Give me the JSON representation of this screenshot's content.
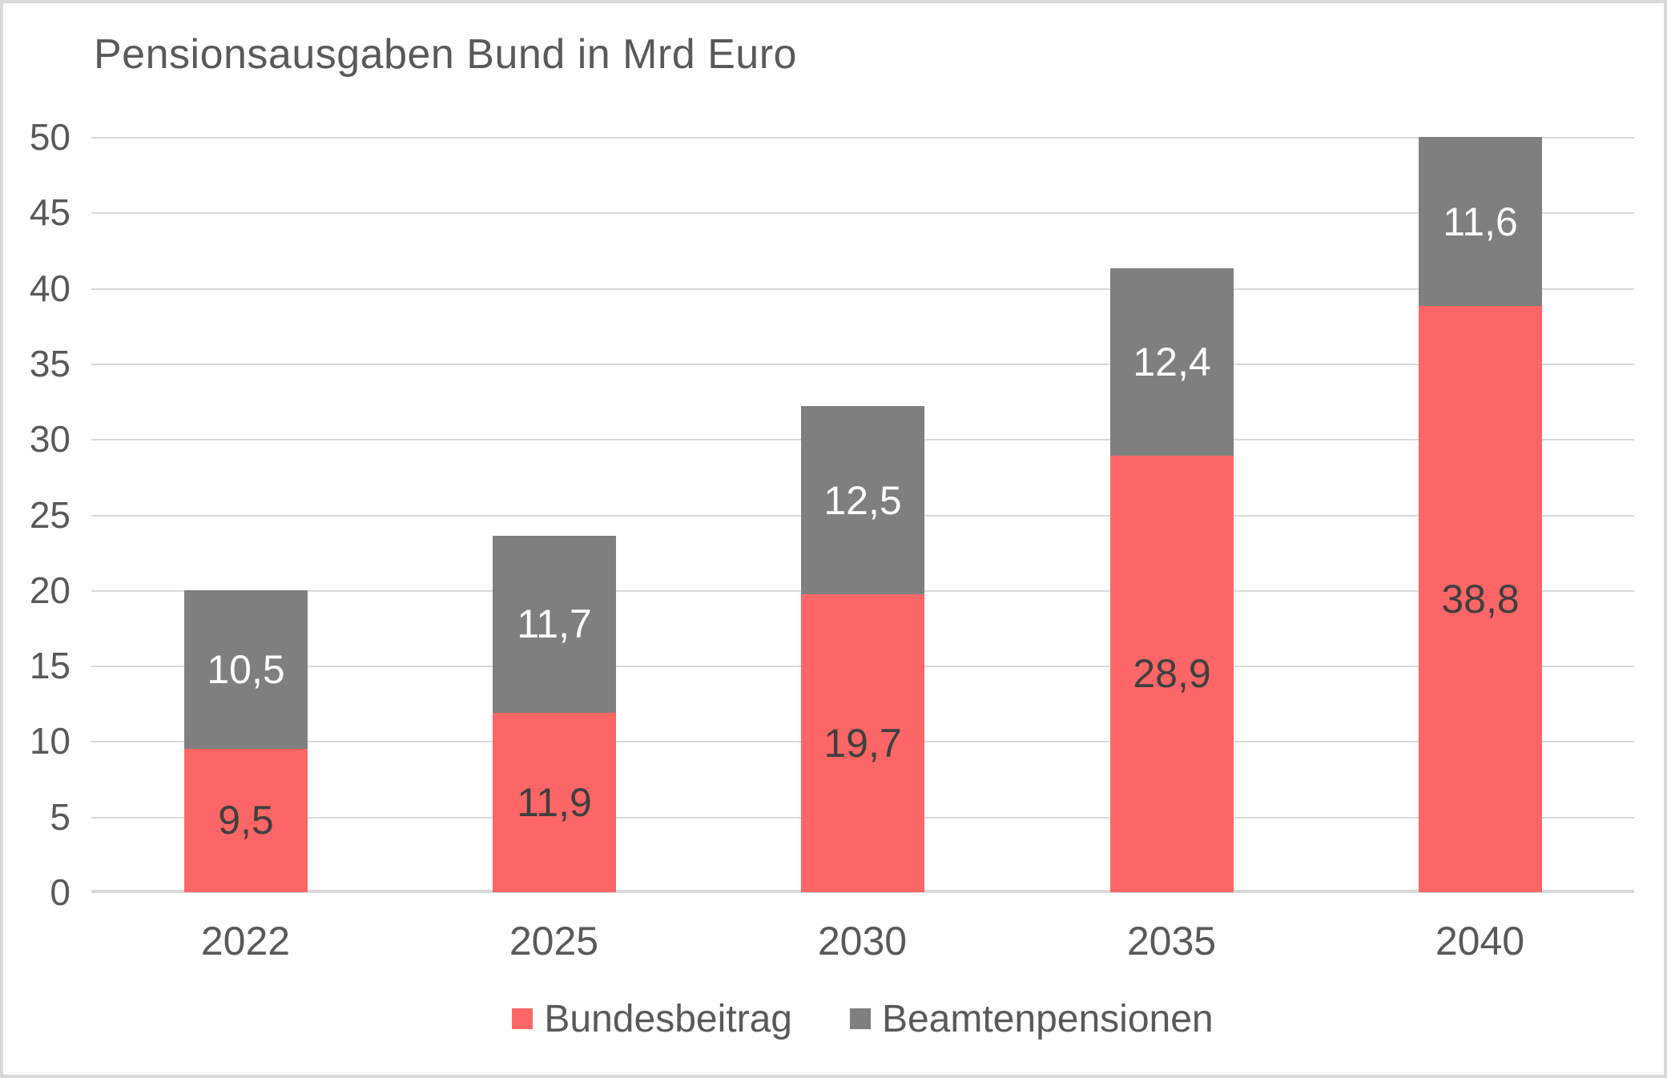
{
  "page": {
    "background_color": "#FFFFFF",
    "frame_border_color": "#D9D9D9"
  },
  "chart_data": {
    "type": "bar",
    "stacked": true,
    "title": "Pensionsausgaben Bund in Mrd Euro",
    "categories": [
      "2022",
      "2025",
      "2030",
      "2035",
      "2040"
    ],
    "series": [
      {
        "name": "Bundesbeitrag",
        "color": "#FC6666",
        "label_color": "#3F3F3F",
        "values": [
          9.5,
          11.9,
          19.7,
          28.9,
          38.8
        ],
        "labels": [
          "9,5",
          "11,9",
          "19,7",
          "28,9",
          "38,8"
        ]
      },
      {
        "name": "Beamtenpensionen",
        "color": "#7F7F7F",
        "label_color": "#FFFFFF",
        "values": [
          10.5,
          11.7,
          12.5,
          12.4,
          11.6
        ],
        "labels": [
          "10,5",
          "11,7",
          "12,5",
          "12,4",
          "11,6"
        ]
      }
    ],
    "xlabel": "",
    "ylabel": "",
    "ylim": [
      0,
      50
    ],
    "y_tick_step": 5,
    "y_tick_labels": [
      "50",
      "45",
      "40",
      "35",
      "30",
      "25",
      "20",
      "15",
      "10",
      "5",
      "0"
    ],
    "grid": true,
    "gridline_color": "#D9D9D9",
    "axis_line_color": "#D9D9D9",
    "text_color": "#595959",
    "legend_position": "bottom",
    "note": "2040 bar total (50,4) exceeds axis max and is clipped at 50"
  }
}
